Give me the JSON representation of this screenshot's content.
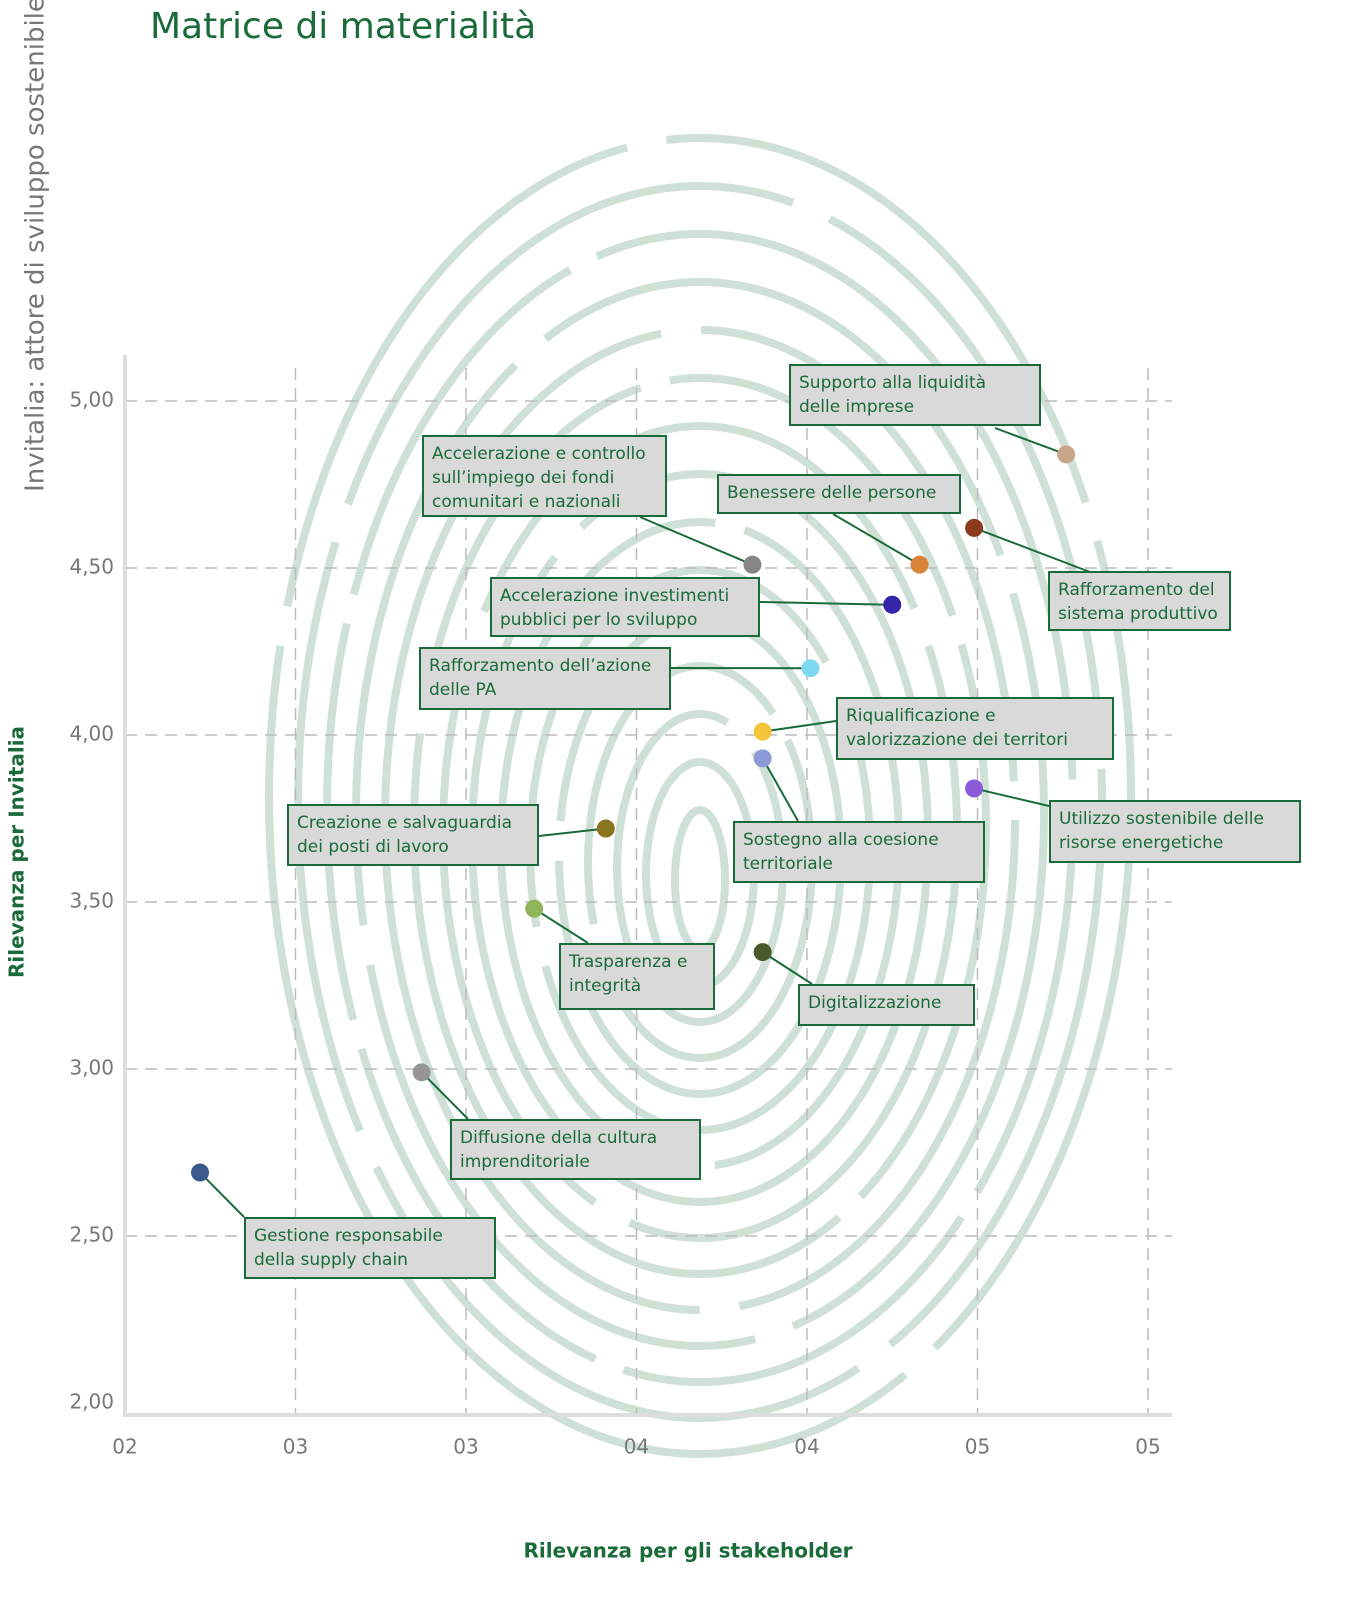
{
  "chart_data": {
    "type": "scatter",
    "title": "Matrice di materialità",
    "subtitle": "Invitalia: attore di sviluppo sostenibile",
    "x_label": "Rilevanza per gli stakeholder",
    "y_label": "Rilevanza per Invitalia",
    "xlim": [
      2,
      5
    ],
    "ylim": [
      2,
      5
    ],
    "xticks": [
      {
        "value": 2,
        "label": "02"
      },
      {
        "value": 2.5,
        "label": "03"
      },
      {
        "value": 3,
        "label": "03"
      },
      {
        "value": 3.5,
        "label": "04"
      },
      {
        "value": 4,
        "label": "04"
      },
      {
        "value": 4.5,
        "label": "05"
      },
      {
        "value": 5,
        "label": "05"
      }
    ],
    "yticks": [
      {
        "value": 2,
        "label": "2,00"
      },
      {
        "value": 2.5,
        "label": "2,50"
      },
      {
        "value": 3,
        "label": "3,00"
      },
      {
        "value": 3.5,
        "label": "3,50"
      },
      {
        "value": 4,
        "label": "4,00"
      },
      {
        "value": 4.5,
        "label": "4,50"
      },
      {
        "value": 5,
        "label": "5,00"
      }
    ],
    "grid": true,
    "series": [
      {
        "name": "Supporto alla liquidità delle imprese",
        "color": "#c9a58a",
        "x": [
          4.76
        ],
        "values": [
          4.84
        ]
      },
      {
        "name": "Accelerazione e controllo sull’impiego dei fondi comunitari e nazionali",
        "color": "#858585",
        "x": [
          3.84
        ],
        "values": [
          4.51
        ]
      },
      {
        "name": "Benessere delle persone",
        "color": "#d9843a",
        "x": [
          4.33
        ],
        "values": [
          4.51
        ]
      },
      {
        "name": "Rafforzamento del sistema produttivo",
        "color": "#8b3a1c",
        "x": [
          4.49
        ],
        "values": [
          4.62
        ]
      },
      {
        "name": "Accelerazione investimenti pubblici per lo sviluppo",
        "color": "#3225a8",
        "x": [
          4.25
        ],
        "values": [
          4.39
        ]
      },
      {
        "name": "Rafforzamento dell’azione delle PA",
        "color": "#7fd8f2",
        "x": [
          4.01
        ],
        "values": [
          4.2
        ]
      },
      {
        "name": "Riqualificazione e valorizzazione dei territori",
        "color": "#f2c53a",
        "x": [
          3.87
        ],
        "values": [
          4.01
        ]
      },
      {
        "name": "Sostegno alla coesione territoriale",
        "color": "#8c9ad8",
        "x": [
          3.87
        ],
        "values": [
          3.93
        ]
      },
      {
        "name": "Utilizzo sostenibile delle risorse energetiche",
        "color": "#8b5ad8",
        "x": [
          4.49
        ],
        "values": [
          3.84
        ]
      },
      {
        "name": "Creazione e salvaguardia dei posti di lavoro",
        "color": "#8a7420",
        "x": [
          3.41
        ],
        "values": [
          3.72
        ]
      },
      {
        "name": "Trasparenza e integrità",
        "color": "#8fb55a",
        "x": [
          3.2
        ],
        "values": [
          3.48
        ]
      },
      {
        "name": "Digitalizzazione",
        "color": "#4a5a2a",
        "x": [
          3.87
        ],
        "values": [
          3.35
        ]
      },
      {
        "name": "Diffusione della cultura imprenditoriale",
        "color": "#969696",
        "x": [
          2.87
        ],
        "values": [
          2.99
        ]
      },
      {
        "name": "Gestione responsabile della supply chain",
        "color": "#3a5a8c",
        "x": [
          2.22
        ],
        "values": [
          2.69
        ]
      }
    ]
  }
}
